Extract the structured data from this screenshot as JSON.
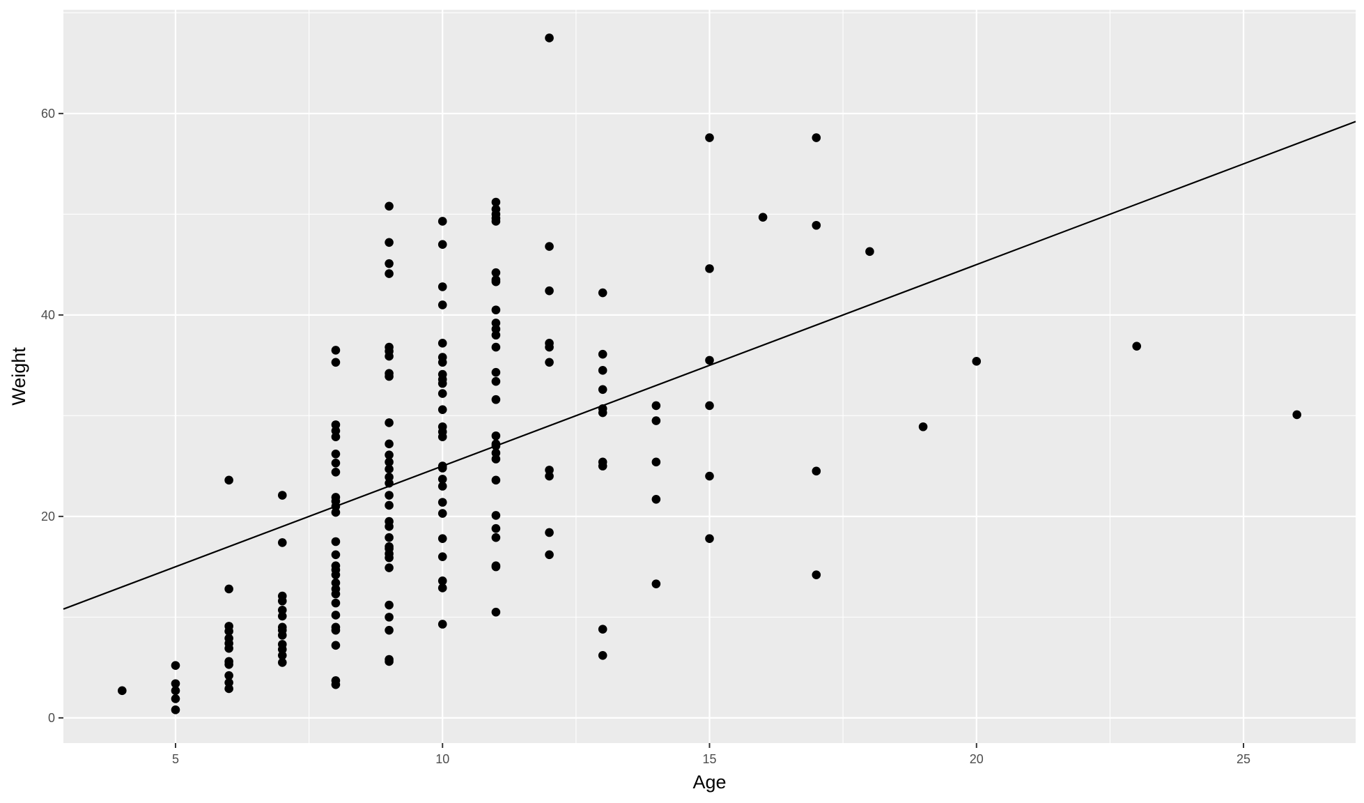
{
  "chart_data": {
    "type": "scatter",
    "title": "",
    "xlabel": "Age",
    "ylabel": "Weight",
    "xlim": [
      2.9,
      27.1
    ],
    "ylim": [
      -2.5,
      70.3
    ],
    "x_ticks": [
      5,
      10,
      15,
      20,
      25
    ],
    "x_tick_labels": [
      "5",
      "10",
      "15",
      "20",
      "25"
    ],
    "y_ticks": [
      0,
      20,
      40,
      60
    ],
    "y_tick_labels": [
      "0",
      "20",
      "40",
      "60"
    ],
    "grid": true,
    "legend": "none",
    "colors": {
      "panel": "#ebebeb",
      "grid": "#ffffff",
      "points": "#000000",
      "line": "#000000",
      "tick_text": "#4d4d4d"
    },
    "points": [
      [
        4,
        2.7
      ],
      [
        5,
        0.8
      ],
      [
        5,
        1.9
      ],
      [
        5,
        2.7
      ],
      [
        5,
        3.4
      ],
      [
        5,
        5.2
      ],
      [
        6,
        2.9
      ],
      [
        6,
        3.5
      ],
      [
        6,
        4.2
      ],
      [
        6,
        5.3
      ],
      [
        6,
        5.6
      ],
      [
        6,
        6.9
      ],
      [
        6,
        7.4
      ],
      [
        6,
        7.9
      ],
      [
        6,
        8.6
      ],
      [
        6,
        9.1
      ],
      [
        6,
        12.8
      ],
      [
        6,
        23.6
      ],
      [
        7,
        5.5
      ],
      [
        7,
        6.2
      ],
      [
        7,
        6.8
      ],
      [
        7,
        7.3
      ],
      [
        7,
        8.2
      ],
      [
        7,
        8.7
      ],
      [
        7,
        9.0
      ],
      [
        7,
        10.1
      ],
      [
        7,
        10.7
      ],
      [
        7,
        11.6
      ],
      [
        7,
        12.1
      ],
      [
        7,
        17.4
      ],
      [
        7,
        22.1
      ],
      [
        8,
        3.3
      ],
      [
        8,
        3.7
      ],
      [
        8,
        7.2
      ],
      [
        8,
        8.7
      ],
      [
        8,
        9.0
      ],
      [
        8,
        10.2
      ],
      [
        8,
        11.4
      ],
      [
        8,
        12.3
      ],
      [
        8,
        12.8
      ],
      [
        8,
        13.4
      ],
      [
        8,
        14.2
      ],
      [
        8,
        14.7
      ],
      [
        8,
        15.1
      ],
      [
        8,
        16.2
      ],
      [
        8,
        17.5
      ],
      [
        8,
        20.4
      ],
      [
        8,
        21.0
      ],
      [
        8,
        21.5
      ],
      [
        8,
        21.9
      ],
      [
        8,
        24.4
      ],
      [
        8,
        25.3
      ],
      [
        8,
        26.2
      ],
      [
        8,
        27.9
      ],
      [
        8,
        28.5
      ],
      [
        8,
        29.1
      ],
      [
        8,
        35.3
      ],
      [
        8,
        36.5
      ],
      [
        9,
        5.6
      ],
      [
        9,
        5.8
      ],
      [
        9,
        8.7
      ],
      [
        9,
        10.0
      ],
      [
        9,
        11.2
      ],
      [
        9,
        14.9
      ],
      [
        9,
        15.9
      ],
      [
        9,
        16.3
      ],
      [
        9,
        16.8
      ],
      [
        9,
        17.0
      ],
      [
        9,
        17.9
      ],
      [
        9,
        19.0
      ],
      [
        9,
        19.5
      ],
      [
        9,
        21.1
      ],
      [
        9,
        22.1
      ],
      [
        9,
        23.3
      ],
      [
        9,
        23.9
      ],
      [
        9,
        24.7
      ],
      [
        9,
        25.4
      ],
      [
        9,
        26.1
      ],
      [
        9,
        27.2
      ],
      [
        9,
        29.3
      ],
      [
        9,
        33.9
      ],
      [
        9,
        34.2
      ],
      [
        9,
        35.9
      ],
      [
        9,
        36.4
      ],
      [
        9,
        36.8
      ],
      [
        9,
        44.1
      ],
      [
        9,
        45.1
      ],
      [
        9,
        47.2
      ],
      [
        9,
        50.8
      ],
      [
        10,
        9.3
      ],
      [
        10,
        12.9
      ],
      [
        10,
        13.6
      ],
      [
        10,
        16.0
      ],
      [
        10,
        17.8
      ],
      [
        10,
        20.3
      ],
      [
        10,
        21.4
      ],
      [
        10,
        23.0
      ],
      [
        10,
        23.7
      ],
      [
        10,
        24.8
      ],
      [
        10,
        25.0
      ],
      [
        10,
        27.9
      ],
      [
        10,
        28.4
      ],
      [
        10,
        28.9
      ],
      [
        10,
        30.6
      ],
      [
        10,
        32.2
      ],
      [
        10,
        33.2
      ],
      [
        10,
        33.6
      ],
      [
        10,
        34.1
      ],
      [
        10,
        35.3
      ],
      [
        10,
        35.8
      ],
      [
        10,
        37.2
      ],
      [
        10,
        41.0
      ],
      [
        10,
        42.8
      ],
      [
        10,
        47.0
      ],
      [
        10,
        49.3
      ],
      [
        11,
        10.5
      ],
      [
        11,
        15.0
      ],
      [
        11,
        15.1
      ],
      [
        11,
        17.9
      ],
      [
        11,
        18.8
      ],
      [
        11,
        20.1
      ],
      [
        11,
        23.6
      ],
      [
        11,
        25.7
      ],
      [
        11,
        26.3
      ],
      [
        11,
        27.0
      ],
      [
        11,
        27.2
      ],
      [
        11,
        28.0
      ],
      [
        11,
        31.6
      ],
      [
        11,
        33.4
      ],
      [
        11,
        34.3
      ],
      [
        11,
        36.8
      ],
      [
        11,
        38.0
      ],
      [
        11,
        38.6
      ],
      [
        11,
        39.2
      ],
      [
        11,
        40.5
      ],
      [
        11,
        43.3
      ],
      [
        11,
        43.5
      ],
      [
        11,
        44.2
      ],
      [
        11,
        49.3
      ],
      [
        11,
        49.6
      ],
      [
        11,
        50.0
      ],
      [
        11,
        50.5
      ],
      [
        11,
        51.2
      ],
      [
        12,
        16.2
      ],
      [
        12,
        18.4
      ],
      [
        12,
        24.0
      ],
      [
        12,
        24.6
      ],
      [
        12,
        35.3
      ],
      [
        12,
        36.8
      ],
      [
        12,
        37.2
      ],
      [
        12,
        42.4
      ],
      [
        12,
        46.8
      ],
      [
        12,
        67.5
      ],
      [
        13,
        6.2
      ],
      [
        13,
        8.8
      ],
      [
        13,
        25.0
      ],
      [
        13,
        25.4
      ],
      [
        13,
        30.3
      ],
      [
        13,
        30.7
      ],
      [
        13,
        32.6
      ],
      [
        13,
        34.5
      ],
      [
        13,
        36.1
      ],
      [
        13,
        42.2
      ],
      [
        14,
        13.3
      ],
      [
        14,
        21.7
      ],
      [
        14,
        25.4
      ],
      [
        14,
        29.5
      ],
      [
        14,
        31.0
      ],
      [
        15,
        17.8
      ],
      [
        15,
        24.0
      ],
      [
        15,
        31.0
      ],
      [
        15,
        35.5
      ],
      [
        15,
        44.6
      ],
      [
        15,
        57.6
      ],
      [
        16,
        49.7
      ],
      [
        17,
        14.2
      ],
      [
        17,
        24.5
      ],
      [
        17,
        48.9
      ],
      [
        17,
        57.6
      ],
      [
        18,
        46.3
      ],
      [
        19,
        28.9
      ],
      [
        20,
        35.4
      ],
      [
        23,
        36.9
      ],
      [
        26,
        30.1
      ]
    ],
    "trend_line": {
      "intercept": 5.0,
      "slope": 2.0
    }
  }
}
